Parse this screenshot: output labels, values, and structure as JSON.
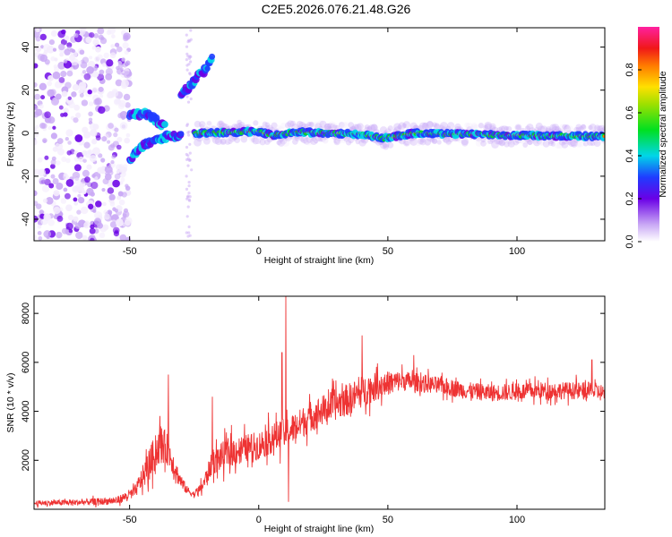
{
  "figure": {
    "title": "C2E5.2026.076.21.48.G26"
  },
  "chart_data": [
    {
      "type": "heatmap",
      "title": "C2E5.2026.076.21.48.G26",
      "xlabel": "Height of straight line (km)",
      "ylabel": "Frequency (Hz)",
      "xlim": [
        -87,
        134
      ],
      "ylim": [
        -50,
        49
      ],
      "xticks": [
        -50,
        0,
        50,
        100
      ],
      "xtick_labels": [
        "-50",
        "0",
        "50",
        "100"
      ],
      "yticks": [
        -40,
        -20,
        0,
        20,
        40
      ],
      "ytick_labels": [
        "-40",
        "-20",
        "0",
        "20",
        "40"
      ],
      "colorbar": {
        "label": "Normalized spectral amplitude",
        "range": [
          0,
          1
        ],
        "ticks": [
          0.0,
          0.2,
          0.4,
          0.6,
          0.8
        ],
        "tick_labels": [
          "0.0",
          "0.2",
          "0.4",
          "0.6",
          "0.8"
        ],
        "colormap": "rainbow (purple-blue-cyan-green-yellow-red-magenta)"
      },
      "features": [
        {
          "name": "noise region",
          "x_range": [
            -87,
            -50
          ],
          "y_range": [
            -50,
            49
          ],
          "amplitude": "low (0.05-0.3), scattered"
        },
        {
          "name": "lower signal branch",
          "points": [
            [
              -50,
              -12
            ],
            [
              -44,
              -5
            ],
            [
              -38,
              -2
            ],
            [
              -30,
              -1
            ]
          ]
        },
        {
          "name": "upper signal branch",
          "points": [
            [
              -50,
              8
            ],
            [
              -44,
              9
            ],
            [
              -40,
              6
            ],
            [
              -36,
              3
            ]
          ]
        },
        {
          "name": "diagonal streak",
          "points": [
            [
              -30,
              18
            ],
            [
              -26,
              23
            ],
            [
              -21,
              29
            ],
            [
              -18,
              35
            ]
          ]
        },
        {
          "name": "main signal line",
          "points": [
            [
              -25,
              0
            ],
            [
              0,
              0.8
            ],
            [
              5,
              -1
            ],
            [
              15,
              0.5
            ],
            [
              40,
              -0.5
            ],
            [
              48,
              -2.5
            ],
            [
              60,
              0
            ],
            [
              100,
              -1
            ],
            [
              134,
              -1.5
            ]
          ],
          "amplitude": "high (0.8-1.0)"
        }
      ]
    },
    {
      "type": "line",
      "xlabel": "Height of straight line (km)",
      "ylabel": "SNR (10 * v/v)",
      "xlim": [
        -87,
        134
      ],
      "ylim": [
        0,
        8700
      ],
      "xticks": [
        -50,
        0,
        50,
        100
      ],
      "xtick_labels": [
        "-50",
        "0",
        "50",
        "100"
      ],
      "yticks": [
        2000,
        4000,
        6000,
        8000
      ],
      "ytick_labels": [
        "2000",
        "4000",
        "6000",
        "8000"
      ],
      "series": [
        {
          "name": "SNR",
          "color": "#ee3333",
          "envelope": {
            "x": [
              -87,
              -70,
              -55,
              -48,
              -42,
              -38,
              -35,
              -31,
              -28,
              -25,
              -22,
              -18,
              -12,
              -5,
              0,
              5,
              10,
              15,
              20,
              28,
              35,
              42,
              50,
              55,
              60,
              70,
              80,
              90,
              100,
              110,
              120,
              130,
              134
            ],
            "mean": [
              250,
              280,
              350,
              700,
              1900,
              2700,
              2400,
              1300,
              800,
              600,
              900,
              1900,
              2300,
              2500,
              2600,
              2900,
              3100,
              3400,
              3800,
              4200,
              4500,
              4900,
              5150,
              5250,
              5200,
              5050,
              4850,
              4750,
              4800,
              4850,
              4850,
              4800,
              4750
            ],
            "spread": [
              150,
              180,
              220,
              350,
              1000,
              1100,
              900,
              500,
              250,
              200,
              350,
              700,
              900,
              800,
              850,
              900,
              900,
              900,
              900,
              900,
              950,
              900,
              700,
              600,
              550,
              500,
              500,
              500,
              500,
              500,
              500,
              550,
              500
            ]
          },
          "spikes": [
            {
              "x": -35,
              "y": 5500
            },
            {
              "x": -18,
              "y": 4600
            },
            {
              "x": 9,
              "y": 6400
            },
            {
              "x": 10.5,
              "y": 8700
            },
            {
              "x": 11.5,
              "y": 300
            },
            {
              "x": 40,
              "y": 7100
            },
            {
              "x": 60,
              "y": 6300
            },
            {
              "x": 129,
              "y": 6100
            }
          ]
        }
      ]
    }
  ]
}
